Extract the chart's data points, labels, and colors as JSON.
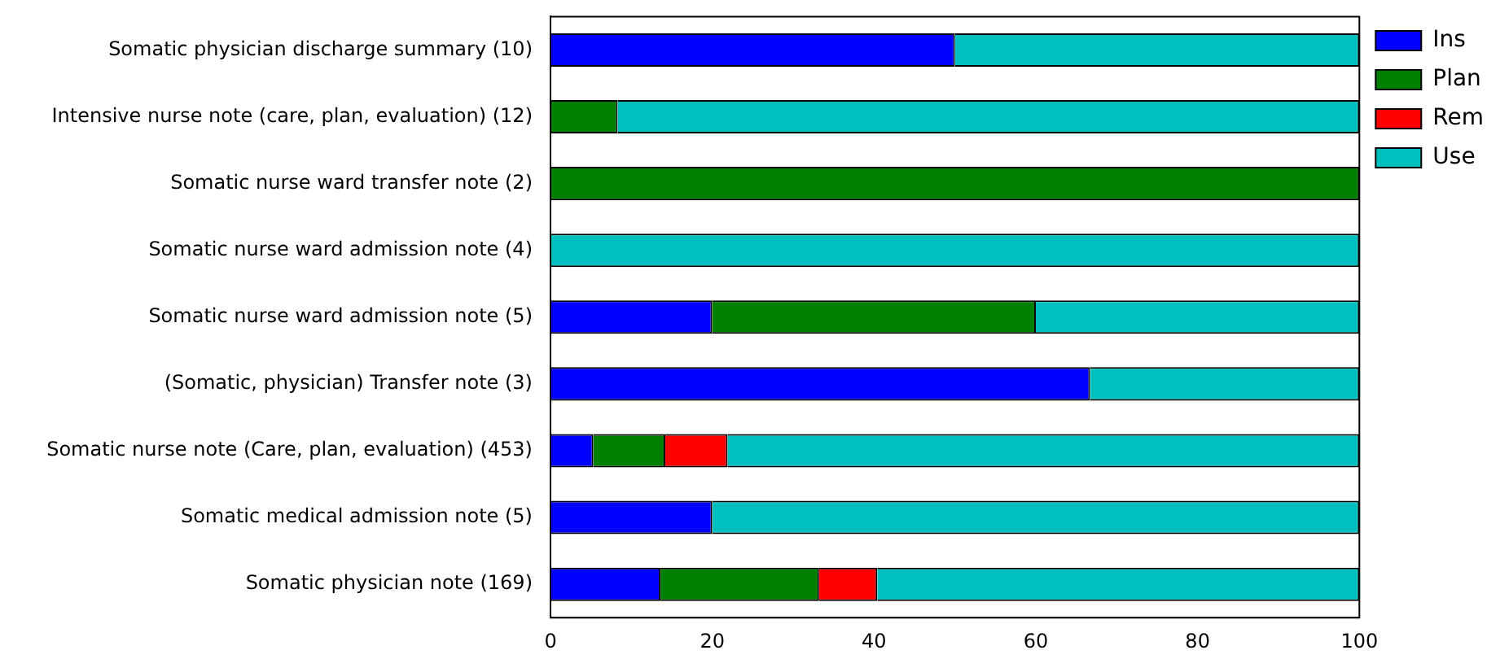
{
  "chart_data": {
    "type": "bar",
    "orientation": "horizontal",
    "stacked": true,
    "categories": [
      "Somatic physician discharge summary (10)",
      "Intensive nurse note (care, plan, evaluation) (12)",
      "Somatic nurse ward transfer note (2)",
      "Somatic nurse ward admission note (4)",
      "Somatic nurse ward admission note (5)",
      "(Somatic, physician) Transfer note (3)",
      "Somatic nurse note (Care, plan, evaluation) (453)",
      "Somatic medical admission note (5)",
      "Somatic physician note (169)"
    ],
    "series": [
      {
        "name": "Ins",
        "color": "#0000ff",
        "values": [
          50,
          0,
          0,
          0,
          20,
          66.7,
          5.3,
          20,
          13.6
        ]
      },
      {
        "name": "Plan",
        "color": "#008000",
        "values": [
          0,
          8.3,
          100,
          0,
          40,
          0,
          8.9,
          0,
          19.6
        ]
      },
      {
        "name": "Rem",
        "color": "#ff0000",
        "values": [
          0,
          0,
          0,
          0,
          0,
          0,
          7.7,
          0,
          7.2
        ]
      },
      {
        "name": "Use",
        "color": "#00bfbf",
        "values": [
          50,
          91.7,
          0,
          100,
          40,
          33.3,
          78.1,
          80,
          59.6
        ]
      }
    ],
    "xlim": [
      0,
      100
    ],
    "xticks": [
      0,
      20,
      40,
      60,
      80,
      100
    ],
    "grid": false,
    "legend": "top right"
  }
}
